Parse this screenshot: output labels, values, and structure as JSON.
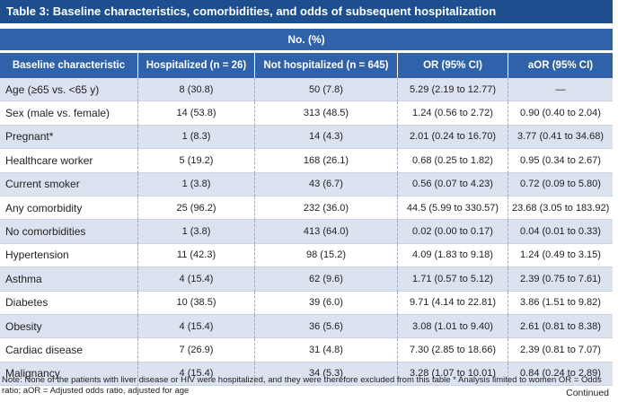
{
  "table": {
    "title": "Table 3: Baseline characteristics, comorbidities, and odds of subsequent hospitalization",
    "group_header": "No. (%)",
    "columns": [
      "Baseline characteristic",
      "Hospitalized (n = 26)",
      "Not hospitalized (n = 645)",
      "OR (95% CI)",
      "aOR (95% CI)"
    ],
    "rows": [
      [
        "Age (≥65 vs. <65 y)",
        "8 (30.8)",
        "50 (7.8)",
        "5.29 (2.19 to 12.77)",
        "—"
      ],
      [
        "Sex (male vs. female)",
        "14 (53.8)",
        "313 (48.5)",
        "1.24 (0.56 to 2.72)",
        "0.90 (0.40 to 2.04)"
      ],
      [
        "Pregnant*",
        "1 (8.3)",
        "14 (4.3)",
        "2.01 (0.24 to 16.70)",
        "3.77 (0.41 to 34.68)"
      ],
      [
        "Healthcare worker",
        "5 (19.2)",
        "168 (26.1)",
        "0.68 (0.25 to 1.82)",
        "0.95 (0.34 to 2.67)"
      ],
      [
        "Current smoker",
        "1 (3.8)",
        "43 (6.7)",
        "0.56 (0.07 to 4.23)",
        "0.72 (0.09 to 5.80)"
      ],
      [
        "Any comorbidity",
        "25 (96.2)",
        "232 (36.0)",
        "44.5 (5.99 to 330.57)",
        "23.68 (3.05 to 183.92)"
      ],
      [
        "No comorbidities",
        "1 (3.8)",
        "413 (64.0)",
        "0.02 (0.00 to 0.17)",
        "0.04 (0.01 to 0.33)"
      ],
      [
        "Hypertension",
        "11 (42.3)",
        "98 (15.2)",
        "4.09 (1.83 to 9.18)",
        "1.24 (0.49 to 3.15)"
      ],
      [
        "Asthma",
        "4 (15.4)",
        "62 (9.6)",
        "1.71 (0.57 to 5.12)",
        "2.39 (0.75 to 7.61)"
      ],
      [
        "Diabetes",
        "10 (38.5)",
        "39 (6.0)",
        "9.71 (4.14 to 22.81)",
        "3.86 (1.51 to 9.82)"
      ],
      [
        "Obesity",
        "4 (15.4)",
        "36 (5.6)",
        "3.08 (1.01 to 9.40)",
        "2.61 (0.81 to 8.38)"
      ],
      [
        "Cardiac disease",
        "7 (26.9)",
        "31 (4.8)",
        "7.30 (2.85 to 18.66)",
        "2.39 (0.81 to 7.07)"
      ],
      [
        "Malignancy",
        "4 (15.4)",
        "34 (5.3)",
        "3.28 (1.07 to 10.01)",
        "0.84 (0.24 to 2.89)"
      ]
    ]
  },
  "note": "Note: None of the patients with liver disease or HIV were hospitalized, and they were therefore excluded from this table * Analysis limited to women OR = Odds ratio; aOR = Adjusted odds ratio, adjusted for age",
  "continued": "Continued",
  "colors": {
    "title_bg": "#1d4f8f",
    "header_bg": "#2f62a8",
    "row_alt": "#dbe2f0"
  }
}
